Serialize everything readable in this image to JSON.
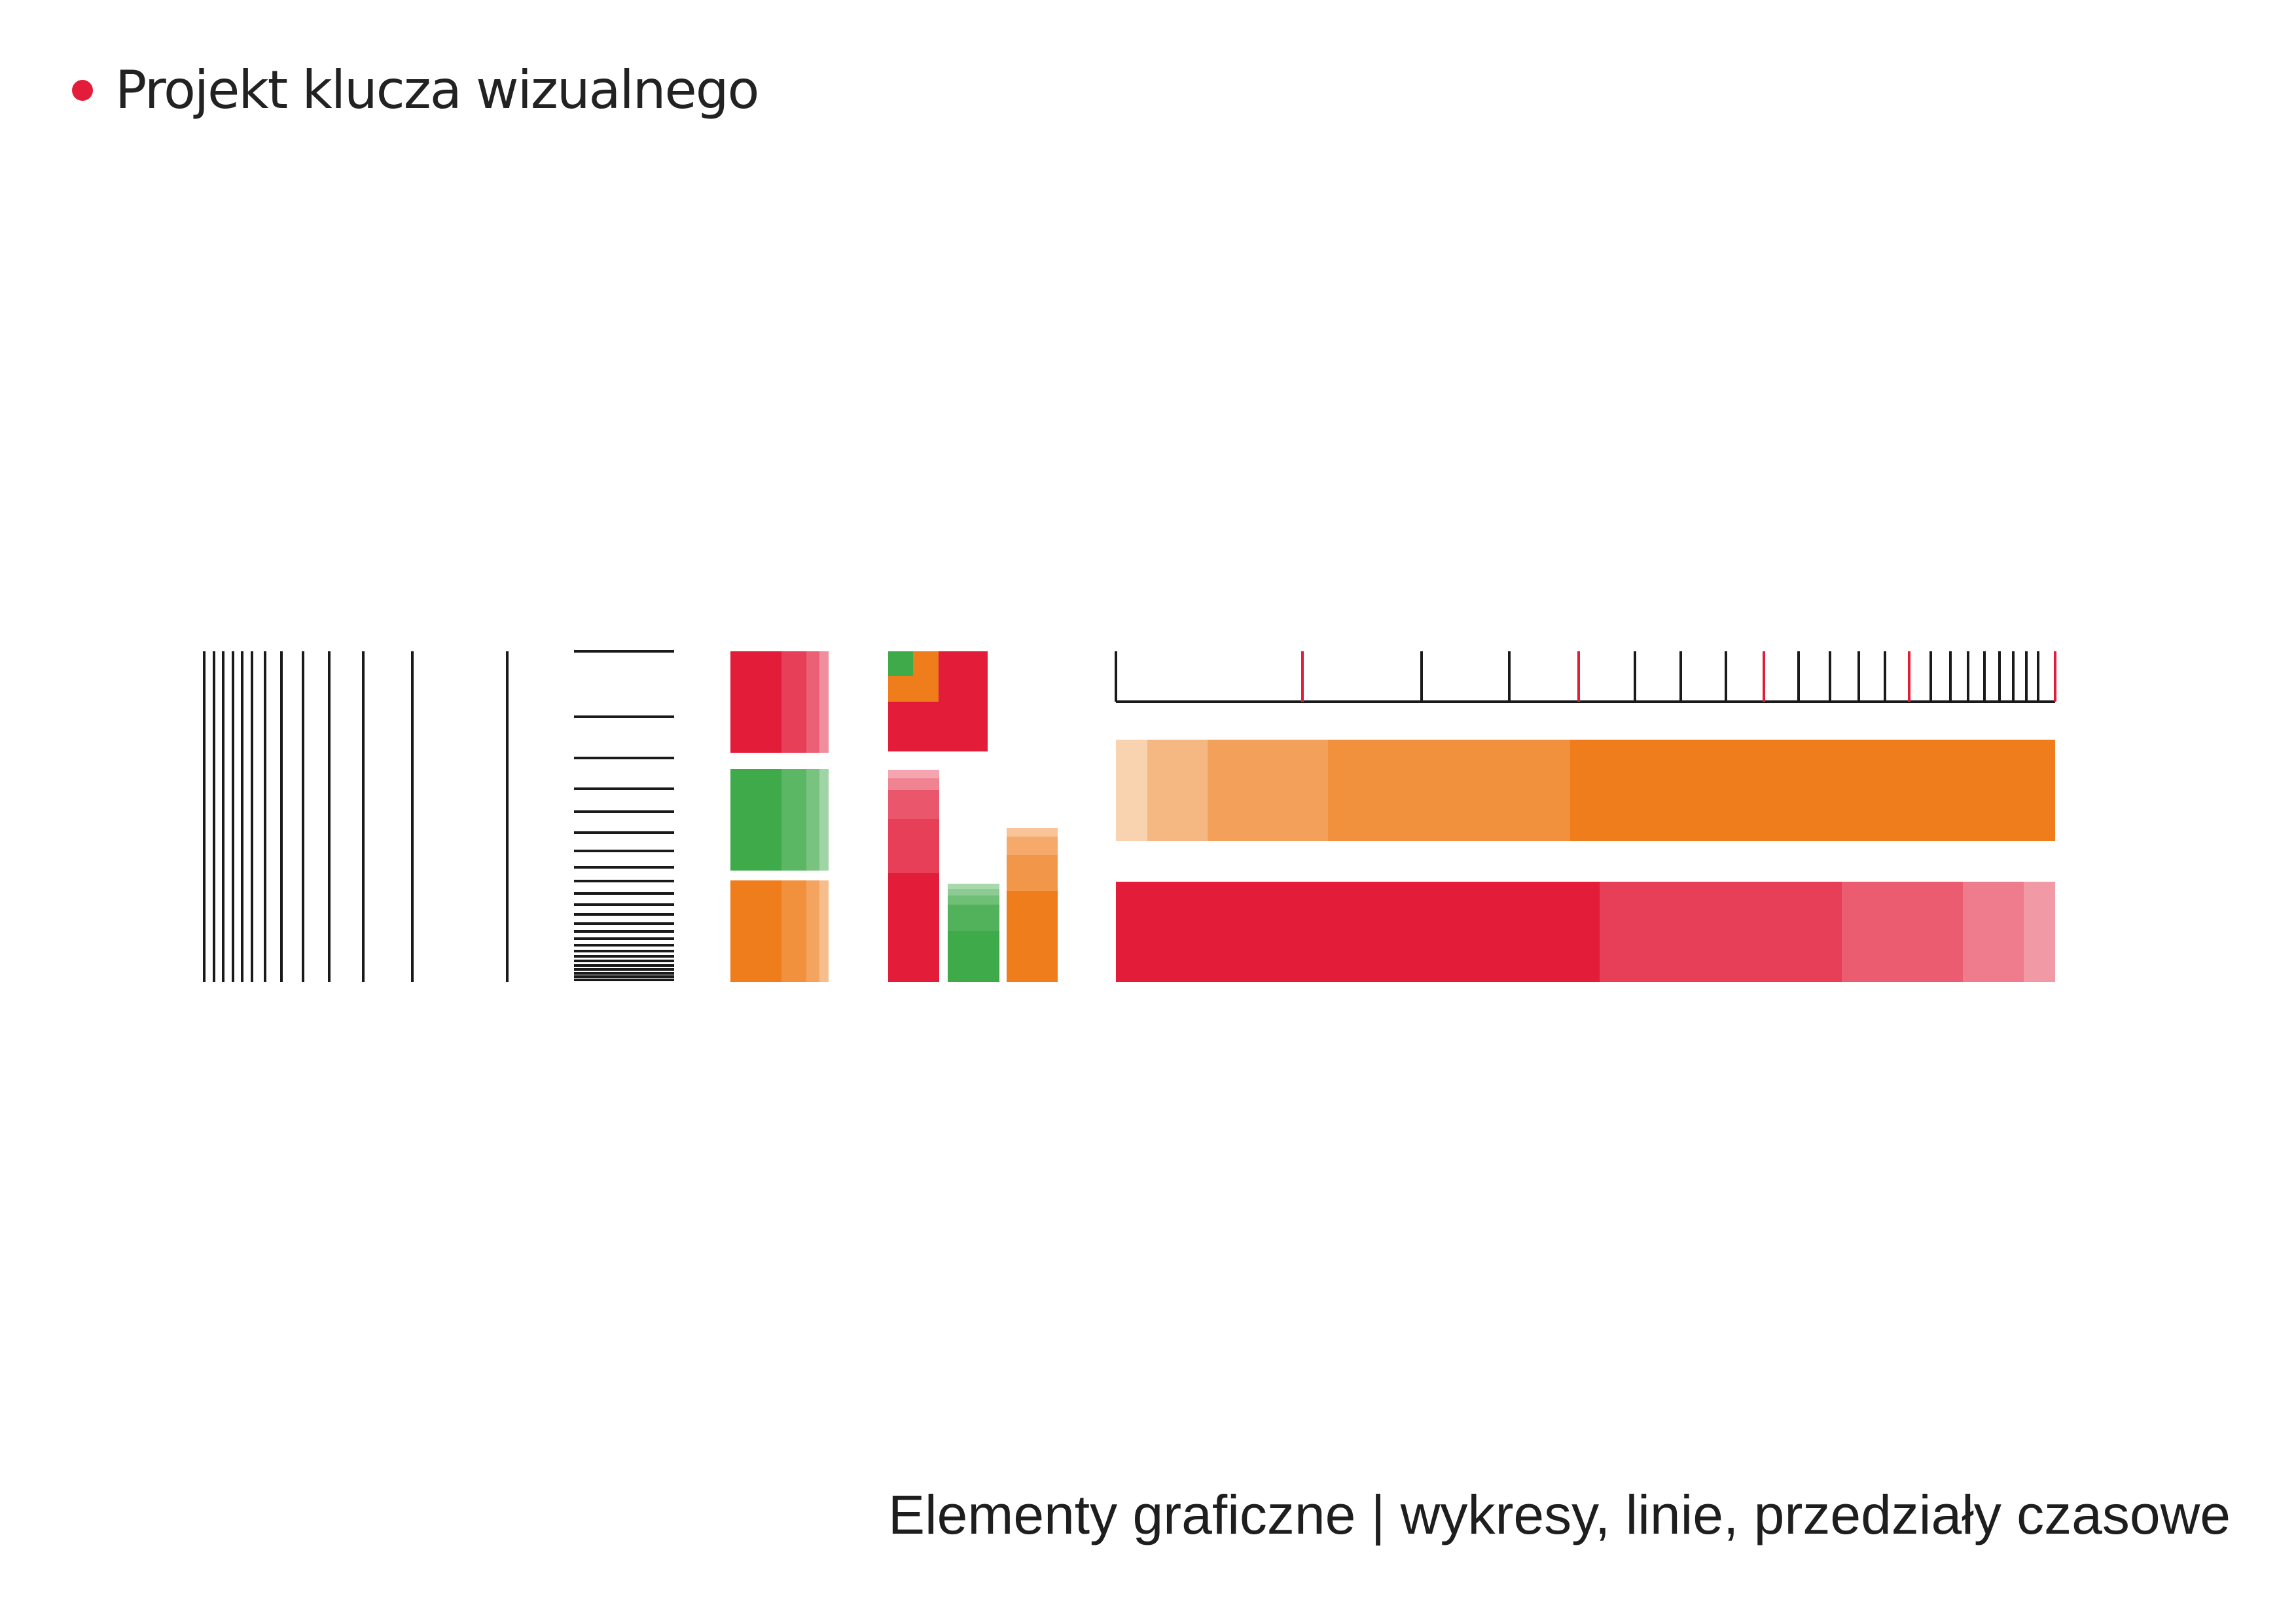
{
  "header": {
    "title": "Projekt klucza wizualnego"
  },
  "footer": {
    "caption": "Elementy graficzne | wykresy, linie, przedziały czasowe"
  },
  "colors": {
    "red": "#e31d39",
    "green": "#3faa4a",
    "orange": "#ef7d1b",
    "line": "#1a1a1a",
    "tick_accent": "#e31d39"
  },
  "elements": {
    "icons": [
      "vertical-lines-pattern-icon",
      "horizontal-lines-pattern-icon",
      "color-swatch-grid-icon",
      "nested-squares-icon",
      "stacked-bars-icon",
      "timeline-scale-icon",
      "orange-gradient-bar-icon",
      "red-gradient-bar-icon"
    ]
  }
}
